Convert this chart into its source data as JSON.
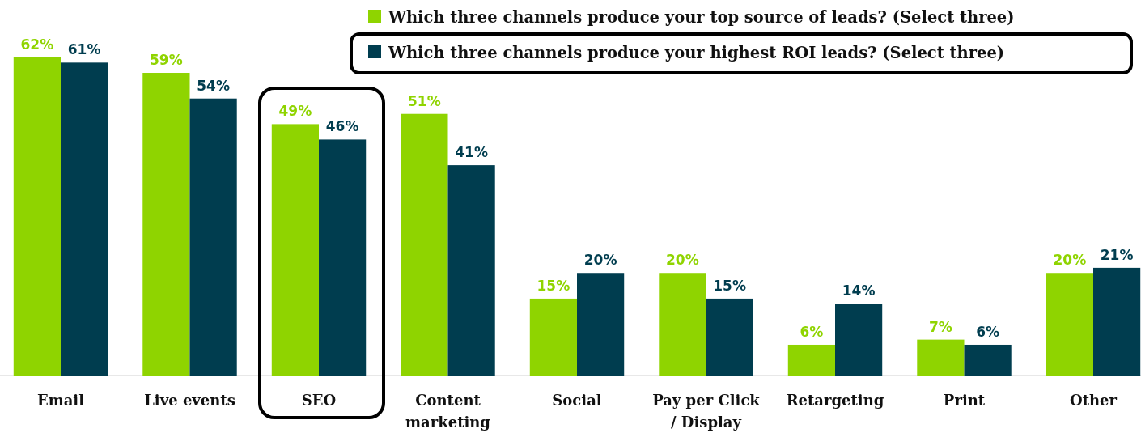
{
  "chart_data": {
    "type": "bar",
    "categories": [
      "Email",
      "Live events",
      "SEO",
      "Content marketing",
      "Social",
      "Pay per Click / Display",
      "Retargeting",
      "Print",
      "Other"
    ],
    "series": [
      {
        "name": "Which three channels produce your top source of leads? (Select three)",
        "color": "#8fd400",
        "values": [
          62,
          59,
          49,
          51,
          15,
          20,
          6,
          7,
          20
        ],
        "value_labels": [
          "62%",
          "59%",
          "49%",
          "51%",
          "15%",
          "20%",
          "6%",
          "7%",
          "20%"
        ]
      },
      {
        "name": "Which three channels produce your highest ROI leads? (Select three)",
        "color": "#003d4f",
        "values": [
          61,
          54,
          46,
          41,
          20,
          15,
          14,
          6,
          21
        ],
        "value_labels": [
          "61%",
          "54%",
          "46%",
          "41%",
          "20%",
          "15%",
          "14%",
          "6%",
          "21%"
        ]
      }
    ],
    "ylim": [
      0,
      62
    ],
    "legend": "top right"
  }
}
